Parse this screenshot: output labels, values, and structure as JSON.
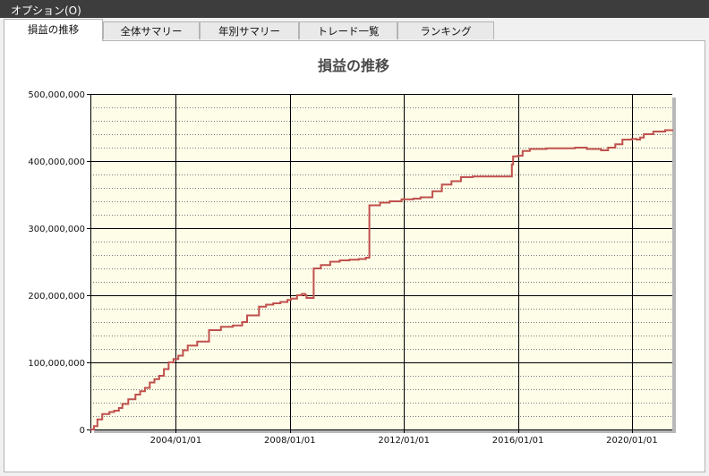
{
  "menubar": {
    "options_label": "オプション(O)"
  },
  "tabs": [
    {
      "label": "損益の推移",
      "active": true
    },
    {
      "label": "全体サマリー",
      "active": false
    },
    {
      "label": "年別サマリー",
      "active": false
    },
    {
      "label": "トレード一覧",
      "active": false
    },
    {
      "label": "ランキング",
      "active": false
    }
  ],
  "chart_title": "損益の推移",
  "chart_data": {
    "type": "line",
    "title": "損益の推移",
    "xlabel": "",
    "ylabel": "",
    "x_range": [
      "2001/01/01",
      "2021/06/01"
    ],
    "ylim": [
      0,
      500000000
    ],
    "y_ticks": [
      {
        "value": 0,
        "label": "0"
      },
      {
        "value": 100000000,
        "label": "100,000,000"
      },
      {
        "value": 200000000,
        "label": "200,000,000"
      },
      {
        "value": 300000000,
        "label": "300,000,000"
      },
      {
        "value": 400000000,
        "label": "400,000,000"
      },
      {
        "value": 500000000,
        "label": "500,000,000"
      }
    ],
    "x_ticks": [
      "2004/01/01",
      "2008/01/01",
      "2012/01/01",
      "2016/01/01",
      "2020/01/01"
    ],
    "minor_y_step": 20000000,
    "grid": true,
    "legend": "none",
    "plot_background": "#fdfde8",
    "line_color": "#c0504d",
    "series": [
      {
        "x": [
          "2001/01/01",
          "2001/02/15",
          "2001/04/01",
          "2001/06/01",
          "2001/09/01",
          "2001/11/01",
          "2002/01/01",
          "2002/02/15",
          "2002/05/01",
          "2002/08/01",
          "2002/10/01",
          "2002/12/01",
          "2003/02/01",
          "2003/04/01",
          "2003/06/01",
          "2003/08/01",
          "2003/10/01",
          "2003/12/01",
          "2004/02/01",
          "2004/04/01",
          "2004/06/01",
          "2004/10/01",
          "2005/03/01",
          "2005/08/01",
          "2006/01/01",
          "2006/05/01",
          "2006/07/01",
          "2006/12/01",
          "2007/03/01",
          "2007/06/01",
          "2007/09/01",
          "2007/12/01",
          "2008/01/15",
          "2008/04/01",
          "2008/06/01",
          "2008/07/15",
          "2008/08/01",
          "2008/11/01",
          "2009/02/01",
          "2009/06/01",
          "2009/10/01",
          "2010/02/01",
          "2010/06/01",
          "2010/09/01",
          "2010/10/15",
          "2011/03/01",
          "2011/07/01",
          "2011/12/01",
          "2012/05/01",
          "2012/08/01",
          "2013/01/01",
          "2013/05/01",
          "2013/09/01",
          "2014/01/01",
          "2014/06/01",
          "2014/12/01",
          "2015/04/01",
          "2015/08/01",
          "2015/10/15",
          "2015/11/01",
          "2016/01/01",
          "2016/03/01",
          "2016/06/01",
          "2017/01/01",
          "2018/01/01",
          "2018/06/01",
          "2018/12/01",
          "2019/03/01",
          "2019/06/01",
          "2019/09/01",
          "2020/01/01",
          "2020/03/01",
          "2020/04/15",
          "2020/06/01",
          "2020/10/01",
          "2021/03/01",
          "2021/06/01"
        ],
        "y": [
          0,
          5000000,
          15000000,
          23000000,
          26000000,
          28000000,
          32000000,
          38000000,
          45000000,
          52000000,
          57000000,
          62000000,
          70000000,
          75000000,
          80000000,
          90000000,
          100000000,
          105000000,
          110000000,
          118000000,
          125000000,
          131000000,
          148000000,
          153000000,
          155000000,
          160000000,
          170000000,
          183000000,
          186000000,
          188000000,
          190000000,
          193000000,
          195000000,
          200000000,
          202000000,
          200000000,
          196000000,
          240000000,
          245000000,
          250000000,
          252000000,
          253000000,
          254000000,
          256000000,
          334000000,
          338000000,
          340000000,
          343000000,
          344000000,
          346000000,
          355000000,
          365000000,
          370000000,
          376000000,
          377000000,
          377000000,
          377000000,
          377000000,
          395000000,
          407000000,
          408000000,
          415000000,
          418000000,
          419000000,
          420000000,
          418000000,
          416000000,
          420000000,
          425000000,
          432000000,
          433000000,
          432000000,
          435000000,
          440000000,
          444000000,
          446000000,
          447000000
        ]
      }
    ]
  }
}
